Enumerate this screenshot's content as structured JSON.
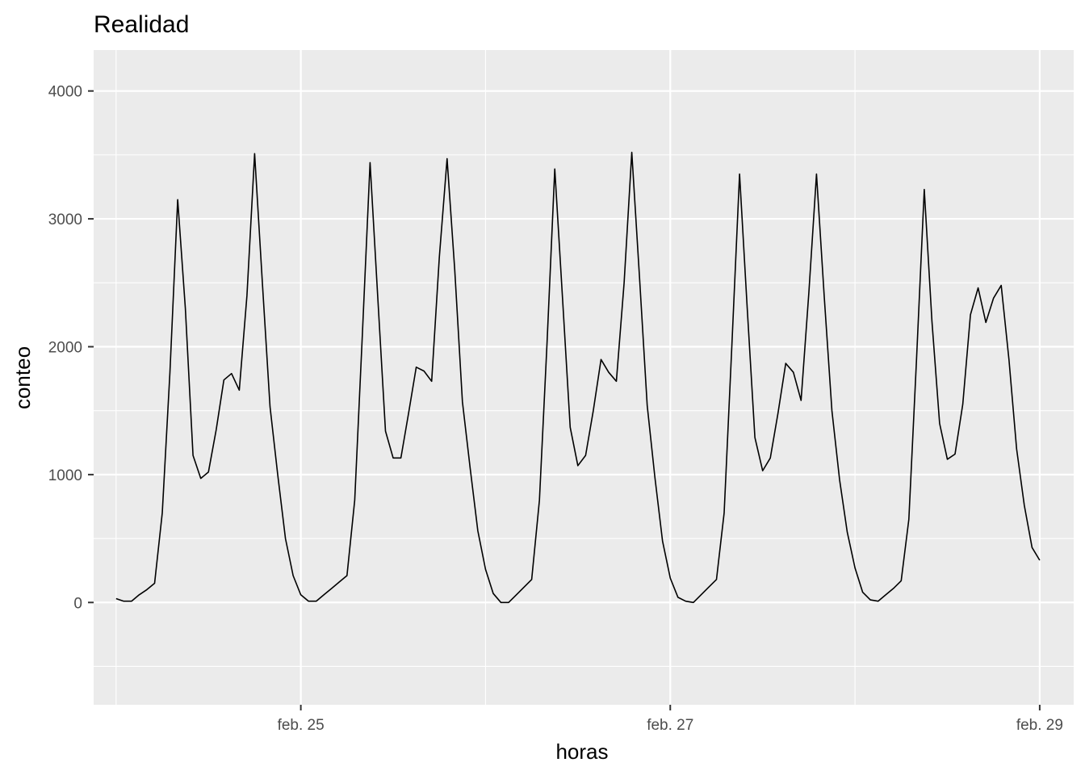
{
  "chart_data": {
    "type": "line",
    "title": "Realidad",
    "xlabel": "horas",
    "ylabel": "conteo",
    "x_tick_labels": [
      "feb. 25",
      "feb. 27",
      "feb. 29"
    ],
    "x_ticks": [
      "2024-02-25",
      "2024-02-27",
      "2024-02-29"
    ],
    "x_range": [
      "2024-02-23T21:05",
      "2024-02-29T04:25"
    ],
    "y_ticks": [
      0,
      1000,
      2000,
      3000,
      4000
    ],
    "y_tick_labels": [
      "0",
      "1000",
      "2000",
      "3000",
      "4000"
    ],
    "ylim": [
      -800,
      4320
    ],
    "grid": true,
    "legend": "none",
    "background": "#EBEBEB",
    "gridline_color": "#FFFFFF",
    "line_color": "#000000",
    "series": [
      {
        "x": [
          "2024-02-24T00:00",
          "2024-02-24T01:00",
          "2024-02-24T02:00",
          "2024-02-24T03:00",
          "2024-02-24T04:00",
          "2024-02-24T05:00",
          "2024-02-24T06:00",
          "2024-02-24T07:00",
          "2024-02-24T08:00",
          "2024-02-24T09:00",
          "2024-02-24T10:00",
          "2024-02-24T11:00",
          "2024-02-24T12:00",
          "2024-02-24T13:00",
          "2024-02-24T14:00",
          "2024-02-24T15:00",
          "2024-02-24T16:00",
          "2024-02-24T17:00",
          "2024-02-24T18:00",
          "2024-02-24T19:00",
          "2024-02-24T20:00",
          "2024-02-24T21:00",
          "2024-02-24T22:00",
          "2024-02-24T23:00",
          "2024-02-25T00:00",
          "2024-02-25T01:00",
          "2024-02-25T02:00",
          "2024-02-25T03:00",
          "2024-02-25T04:00",
          "2024-02-25T05:00",
          "2024-02-25T06:00",
          "2024-02-25T07:00",
          "2024-02-25T08:00",
          "2024-02-25T09:00",
          "2024-02-25T10:00",
          "2024-02-25T11:00",
          "2024-02-25T12:00",
          "2024-02-25T13:00",
          "2024-02-25T14:00",
          "2024-02-25T15:00",
          "2024-02-25T16:00",
          "2024-02-25T17:00",
          "2024-02-25T18:00",
          "2024-02-25T19:00",
          "2024-02-25T20:00",
          "2024-02-25T21:00",
          "2024-02-25T22:00",
          "2024-02-25T23:00",
          "2024-02-26T00:00",
          "2024-02-26T01:00",
          "2024-02-26T02:00",
          "2024-02-26T03:00",
          "2024-02-26T04:00",
          "2024-02-26T05:00",
          "2024-02-26T06:00",
          "2024-02-26T07:00",
          "2024-02-26T08:00",
          "2024-02-26T09:00",
          "2024-02-26T10:00",
          "2024-02-26T11:00",
          "2024-02-26T12:00",
          "2024-02-26T13:00",
          "2024-02-26T14:00",
          "2024-02-26T15:00",
          "2024-02-26T16:00",
          "2024-02-26T17:00",
          "2024-02-26T18:00",
          "2024-02-26T19:00",
          "2024-02-26T20:00",
          "2024-02-26T21:00",
          "2024-02-26T22:00",
          "2024-02-26T23:00",
          "2024-02-27T00:00",
          "2024-02-27T01:00",
          "2024-02-27T02:00",
          "2024-02-27T03:00",
          "2024-02-27T04:00",
          "2024-02-27T05:00",
          "2024-02-27T06:00",
          "2024-02-27T07:00",
          "2024-02-27T08:00",
          "2024-02-27T09:00",
          "2024-02-27T10:00",
          "2024-02-27T11:00",
          "2024-02-27T12:00",
          "2024-02-27T13:00",
          "2024-02-27T14:00",
          "2024-02-27T15:00",
          "2024-02-27T16:00",
          "2024-02-27T17:00",
          "2024-02-27T18:00",
          "2024-02-27T19:00",
          "2024-02-27T20:00",
          "2024-02-27T21:00",
          "2024-02-27T22:00",
          "2024-02-27T23:00",
          "2024-02-28T00:00",
          "2024-02-28T01:00",
          "2024-02-28T02:00",
          "2024-02-28T03:00",
          "2024-02-28T04:00",
          "2024-02-28T05:00",
          "2024-02-28T06:00",
          "2024-02-28T07:00",
          "2024-02-28T08:00",
          "2024-02-28T09:00",
          "2024-02-28T10:00",
          "2024-02-28T11:00",
          "2024-02-28T12:00",
          "2024-02-28T13:00",
          "2024-02-28T14:00",
          "2024-02-28T15:00",
          "2024-02-28T16:00",
          "2024-02-28T17:00",
          "2024-02-28T18:00",
          "2024-02-28T19:00",
          "2024-02-28T20:00",
          "2024-02-28T21:00",
          "2024-02-28T22:00",
          "2024-02-28T23:00"
        ],
        "values": [
          30,
          10,
          10,
          60,
          100,
          150,
          700,
          1800,
          3150,
          2300,
          1150,
          970,
          1020,
          1350,
          1740,
          1790,
          1660,
          2400,
          3510,
          2500,
          1530,
          1000,
          500,
          210,
          60,
          10,
          10,
          60,
          110,
          160,
          210,
          800,
          2100,
          3440,
          2380,
          1340,
          1130,
          1130,
          1480,
          1840,
          1810,
          1730,
          2700,
          3470,
          2600,
          1570,
          1050,
          560,
          260,
          70,
          0,
          0,
          60,
          120,
          180,
          800,
          2040,
          3390,
          2380,
          1370,
          1070,
          1150,
          1500,
          1900,
          1800,
          1730,
          2500,
          3520,
          2550,
          1540,
          980,
          480,
          190,
          40,
          10,
          0,
          60,
          120,
          180,
          700,
          2000,
          3350,
          2300,
          1290,
          1030,
          1130,
          1480,
          1870,
          1800,
          1580,
          2420,
          3350,
          2400,
          1500,
          960,
          550,
          270,
          80,
          20,
          10,
          60,
          110,
          170,
          650,
          1900,
          3230,
          2200,
          1400,
          1120,
          1160,
          1550,
          2250,
          2460,
          2190,
          2380,
          2480,
          1900,
          1200,
          760,
          430
        ],
        "tail": {
          "x": "2024-02-29T00:00",
          "value": 330
        }
      }
    ]
  }
}
